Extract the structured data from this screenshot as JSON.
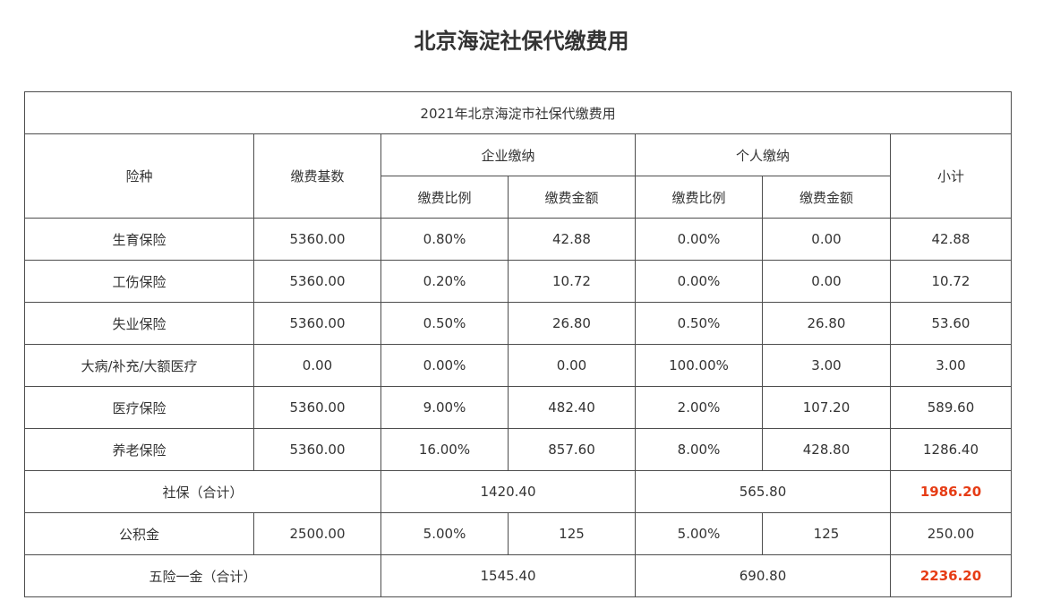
{
  "page": {
    "title": "北京海淀社保代缴费用"
  },
  "table": {
    "caption": "2021年北京海淀市社保代缴费用",
    "headers": {
      "type": "险种",
      "base": "缴费基数",
      "enterprise": "企业缴纳",
      "personal": "个人缴纳",
      "subtotal": "小计",
      "rate": "缴费比例",
      "amount": "缴费金额"
    },
    "rows": [
      {
        "name": "生育保险",
        "base": "5360.00",
        "ent_rate": "0.80%",
        "ent_amount": "42.88",
        "per_rate": "0.00%",
        "per_amount": "0.00",
        "subtotal": "42.88"
      },
      {
        "name": "工伤保险",
        "base": "5360.00",
        "ent_rate": "0.20%",
        "ent_amount": "10.72",
        "per_rate": "0.00%",
        "per_amount": "0.00",
        "subtotal": "10.72"
      },
      {
        "name": "失业保险",
        "base": "5360.00",
        "ent_rate": "0.50%",
        "ent_amount": "26.80",
        "per_rate": "0.50%",
        "per_amount": "26.80",
        "subtotal": "53.60"
      },
      {
        "name": "大病/补充/大额医疗",
        "base": "0.00",
        "ent_rate": "0.00%",
        "ent_amount": "0.00",
        "per_rate": "100.00%",
        "per_amount": "3.00",
        "subtotal": "3.00"
      },
      {
        "name": "医疗保险",
        "base": "5360.00",
        "ent_rate": "9.00%",
        "ent_amount": "482.40",
        "per_rate": "2.00%",
        "per_amount": "107.20",
        "subtotal": "589.60"
      },
      {
        "name": "养老保险",
        "base": "5360.00",
        "ent_rate": "16.00%",
        "ent_amount": "857.60",
        "per_rate": "8.00%",
        "per_amount": "428.80",
        "subtotal": "1286.40"
      }
    ],
    "social_total": {
      "label": "社保（合计）",
      "enterprise": "1420.40",
      "personal": "565.80",
      "subtotal": "1986.20"
    },
    "housing_fund": {
      "name": "公积金",
      "base": "2500.00",
      "ent_rate": "5.00%",
      "ent_amount": "125",
      "per_rate": "5.00%",
      "per_amount": "125",
      "subtotal": "250.00"
    },
    "grand_total": {
      "label": "五险一金（合计）",
      "enterprise": "1545.40",
      "personal": "690.80",
      "subtotal": "2236.20"
    }
  },
  "colors": {
    "highlight": "#e63c15",
    "text": "#333333",
    "border": "#4d4d4d"
  }
}
